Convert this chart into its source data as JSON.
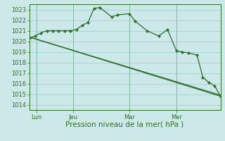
{
  "background_color": "#cce8e8",
  "grid_color": "#99cccc",
  "line_color": "#2d6e2d",
  "marker_color": "#2d6e2d",
  "ylabel_ticks": [
    1014,
    1015,
    1016,
    1017,
    1018,
    1019,
    1020,
    1021,
    1022,
    1023
  ],
  "ylim": [
    1013.5,
    1023.5
  ],
  "xlabel": "Pression niveau de la mer( hPa )",
  "day_labels": [
    "Lun",
    "Jeu",
    "Mar",
    "Mer"
  ],
  "day_positions": [
    5,
    30,
    68,
    100
  ],
  "vline_positions": [
    5,
    30,
    68,
    100
  ],
  "xlim": [
    0,
    130
  ],
  "series1_x": [
    0,
    4,
    8,
    12,
    16,
    20,
    24,
    28,
    32,
    36,
    40,
    44,
    48,
    56,
    60,
    68,
    72,
    80,
    88,
    94,
    100,
    104,
    108,
    114,
    118,
    122,
    126,
    130
  ],
  "series1_y": [
    1020.3,
    1020.5,
    1020.8,
    1021.0,
    1021.0,
    1021.0,
    1021.0,
    1021.0,
    1021.1,
    1021.5,
    1021.8,
    1023.1,
    1023.2,
    1022.3,
    1022.5,
    1022.6,
    1021.9,
    1021.0,
    1020.5,
    1021.1,
    1019.1,
    1019.0,
    1018.9,
    1018.7,
    1016.6,
    1016.1,
    1015.8,
    1014.8
  ],
  "series2_x": [
    0,
    130
  ],
  "series2_y": [
    1020.4,
    1014.9
  ],
  "series3_x": [
    0,
    130
  ],
  "series3_y": [
    1020.4,
    1014.8
  ],
  "tick_fontsize": 6,
  "label_fontsize": 7.5
}
